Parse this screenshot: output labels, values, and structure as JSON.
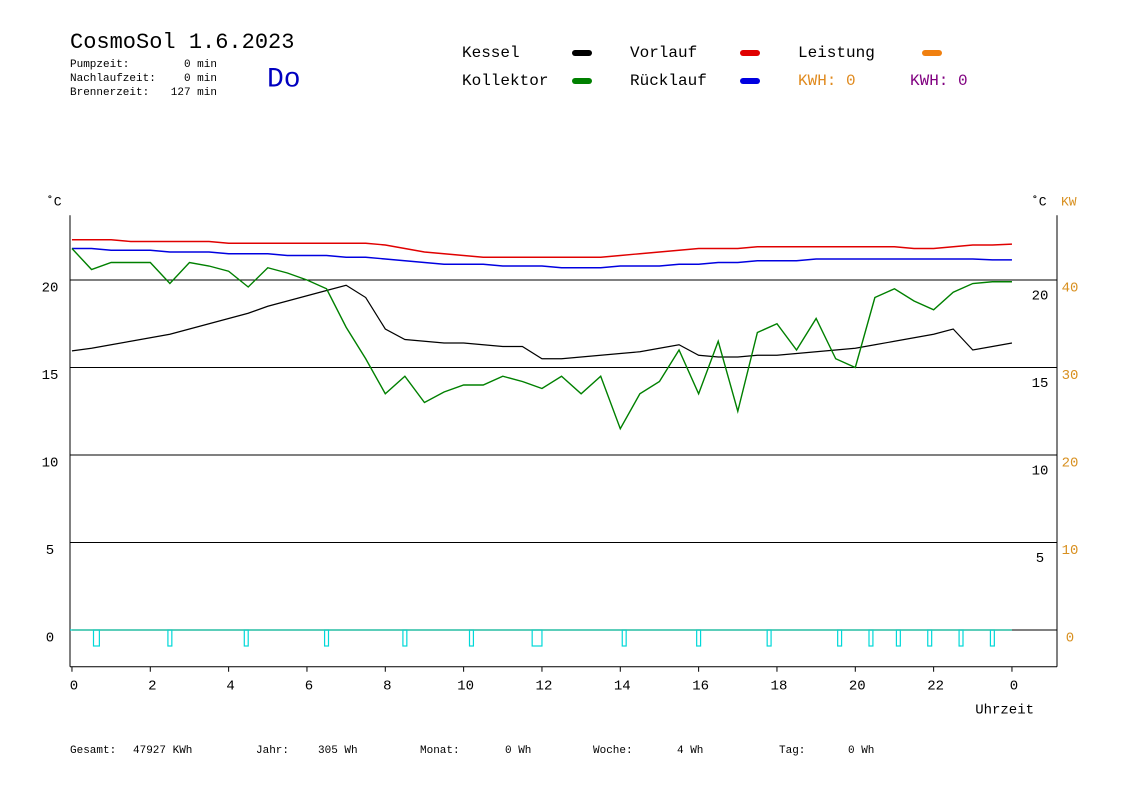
{
  "chart_data": {
    "type": "line",
    "title": "CosmoSol 1.6.2023",
    "weekday": "Do",
    "info": [
      [
        "Pumpzeit:",
        "0 min"
      ],
      [
        "Nachlaufzeit:",
        "0 min"
      ],
      [
        "Brennerzeit:",
        "127 min"
      ]
    ],
    "kwh_labels": [
      {
        "text": "KWH: 0",
        "color": "#e08a1e"
      },
      {
        "text": "KWH: 0",
        "color": "#800080"
      }
    ],
    "footer": [
      [
        "Gesamt:",
        "47927 KWh"
      ],
      [
        "Jahr:",
        "305 Wh"
      ],
      [
        "Monat:",
        "0 Wh"
      ],
      [
        "Woche:",
        "4 Wh"
      ],
      [
        "Tag:",
        "0 Wh"
      ]
    ],
    "y_label": "˚C",
    "y_label_right": "˚C",
    "y2_label": "KW",
    "x_label": "Uhrzeit",
    "x": [
      0,
      0.5,
      1,
      1.5,
      2,
      2.5,
      3,
      3.5,
      4,
      4.5,
      5,
      5.5,
      6,
      6.5,
      7,
      7.5,
      8,
      8.5,
      9,
      9.5,
      10,
      10.5,
      11,
      11.5,
      12,
      12.5,
      13,
      13.5,
      14,
      14.5,
      15,
      15.5,
      16,
      16.5,
      17,
      17.5,
      18,
      18.5,
      19,
      19.5,
      20,
      20.5,
      21,
      21.5,
      22,
      22.5,
      23,
      23.5,
      24
    ],
    "series": [
      {
        "name": "Kessel",
        "color": "#000000",
        "values": [
          15.95,
          16.1,
          16.3,
          16.5,
          16.7,
          16.9,
          17.2,
          17.5,
          17.8,
          18.1,
          18.5,
          18.8,
          19.1,
          19.4,
          19.7,
          19.0,
          17.2,
          16.6,
          16.5,
          16.4,
          16.4,
          16.3,
          16.2,
          16.2,
          15.5,
          15.5,
          15.6,
          15.7,
          15.8,
          15.9,
          16.1,
          16.3,
          15.7,
          15.6,
          15.6,
          15.7,
          15.7,
          15.8,
          15.9,
          16.0,
          16.1,
          16.3,
          16.5,
          16.7,
          16.9,
          17.2,
          16.0,
          16.2,
          16.4
        ]
      },
      {
        "name": "Kollektor",
        "color": "#008000",
        "values": [
          21.8,
          20.6,
          21.0,
          21.0,
          21.0,
          19.8,
          21.0,
          20.8,
          20.5,
          19.6,
          20.7,
          20.4,
          20.0,
          19.5,
          17.3,
          15.5,
          13.5,
          14.5,
          13,
          13.6,
          14,
          14,
          14.5,
          14.2,
          13.8,
          14.5,
          13.5,
          14.5,
          11.5,
          13.5,
          14.2,
          16,
          13.5,
          16.5,
          12.5,
          17,
          17.5,
          16,
          17.8,
          15.5,
          15,
          19,
          19.5,
          18.8,
          18.3,
          19.3,
          19.8,
          19.9,
          19.9
        ]
      },
      {
        "name": "Vorlauf",
        "color": "#e00000",
        "values": [
          22.3,
          22.3,
          22.3,
          22.2,
          22.2,
          22.2,
          22.2,
          22.2,
          22.1,
          22.1,
          22.1,
          22.1,
          22.1,
          22.1,
          22.1,
          22.1,
          22.0,
          21.8,
          21.6,
          21.5,
          21.4,
          21.3,
          21.3,
          21.3,
          21.3,
          21.3,
          21.3,
          21.3,
          21.4,
          21.5,
          21.6,
          21.7,
          21.8,
          21.8,
          21.8,
          21.9,
          21.9,
          21.9,
          21.9,
          21.9,
          21.9,
          21.9,
          21.9,
          21.8,
          21.8,
          21.9,
          22.0,
          22.0,
          22.05
        ]
      },
      {
        "name": "Rücklauf",
        "color": "#0000e0",
        "values": [
          21.8,
          21.8,
          21.7,
          21.7,
          21.7,
          21.6,
          21.6,
          21.6,
          21.5,
          21.5,
          21.5,
          21.4,
          21.4,
          21.4,
          21.3,
          21.3,
          21.2,
          21.1,
          21.0,
          20.9,
          20.9,
          20.9,
          20.8,
          20.8,
          20.8,
          20.7,
          20.7,
          20.7,
          20.8,
          20.8,
          20.8,
          20.9,
          20.9,
          21.0,
          21.0,
          21.1,
          21.1,
          21.1,
          21.2,
          21.2,
          21.2,
          21.2,
          21.2,
          21.2,
          21.2,
          21.2,
          21.2,
          21.15,
          21.15
        ]
      },
      {
        "name": "Leistung",
        "color": "#f08010",
        "axis": "y2",
        "values": [
          0,
          0,
          0,
          0,
          0,
          0,
          0,
          0,
          0,
          0,
          0,
          0,
          0,
          0,
          0,
          0,
          0,
          0,
          0,
          0,
          0,
          0,
          0,
          0,
          0,
          0,
          0,
          0,
          0,
          0,
          0,
          0,
          0,
          0,
          0,
          0,
          0,
          0,
          0,
          0,
          0,
          0,
          0,
          0,
          0,
          0,
          0,
          0,
          0
        ]
      }
    ],
    "pulse_color": "#00d8d8",
    "pulses": [
      [
        0.55,
        0.7
      ],
      [
        2.45,
        2.55
      ],
      [
        4.4,
        4.5
      ],
      [
        6.45,
        6.55
      ],
      [
        8.45,
        8.55
      ],
      [
        10.15,
        10.25
      ],
      [
        11.75,
        12.0
      ],
      [
        14.05,
        14.15
      ],
      [
        15.95,
        16.05
      ],
      [
        17.75,
        17.85
      ],
      [
        19.55,
        19.65
      ],
      [
        20.35,
        20.45
      ],
      [
        21.05,
        21.15
      ],
      [
        21.85,
        21.95
      ],
      [
        22.65,
        22.75
      ],
      [
        23.45,
        23.55
      ]
    ],
    "xlim": [
      -0.05,
      25.15
    ],
    "xticks": [
      0,
      2,
      4,
      6,
      8,
      10,
      12,
      14,
      16,
      18,
      20,
      22,
      {
        "value": 24,
        "label": "0"
      }
    ],
    "ylim": [
      -2.1,
      23.7
    ],
    "yticks": [
      0,
      5,
      10,
      15,
      20
    ],
    "right_yticks": [
      5,
      10,
      15,
      20
    ],
    "y2lim": [
      -4.2,
      47.4
    ],
    "y2ticks": [
      0,
      10,
      20,
      30,
      40
    ],
    "grid": true
  }
}
